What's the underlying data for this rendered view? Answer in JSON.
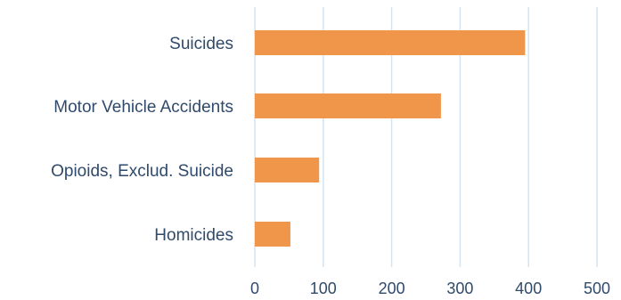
{
  "chart_data": {
    "type": "bar",
    "orientation": "horizontal",
    "categories": [
      "Suicides",
      "Motor Vehicle Accidents",
      "Opioids, Exclud. Suicide",
      "Homicides"
    ],
    "values": [
      395,
      272,
      94,
      52
    ],
    "xlim": [
      0,
      500
    ],
    "xticks": [
      "0",
      "100",
      "200",
      "300",
      "400",
      "500"
    ],
    "grid": "vertical",
    "legend": "none",
    "bar_color": "#f0964a"
  }
}
